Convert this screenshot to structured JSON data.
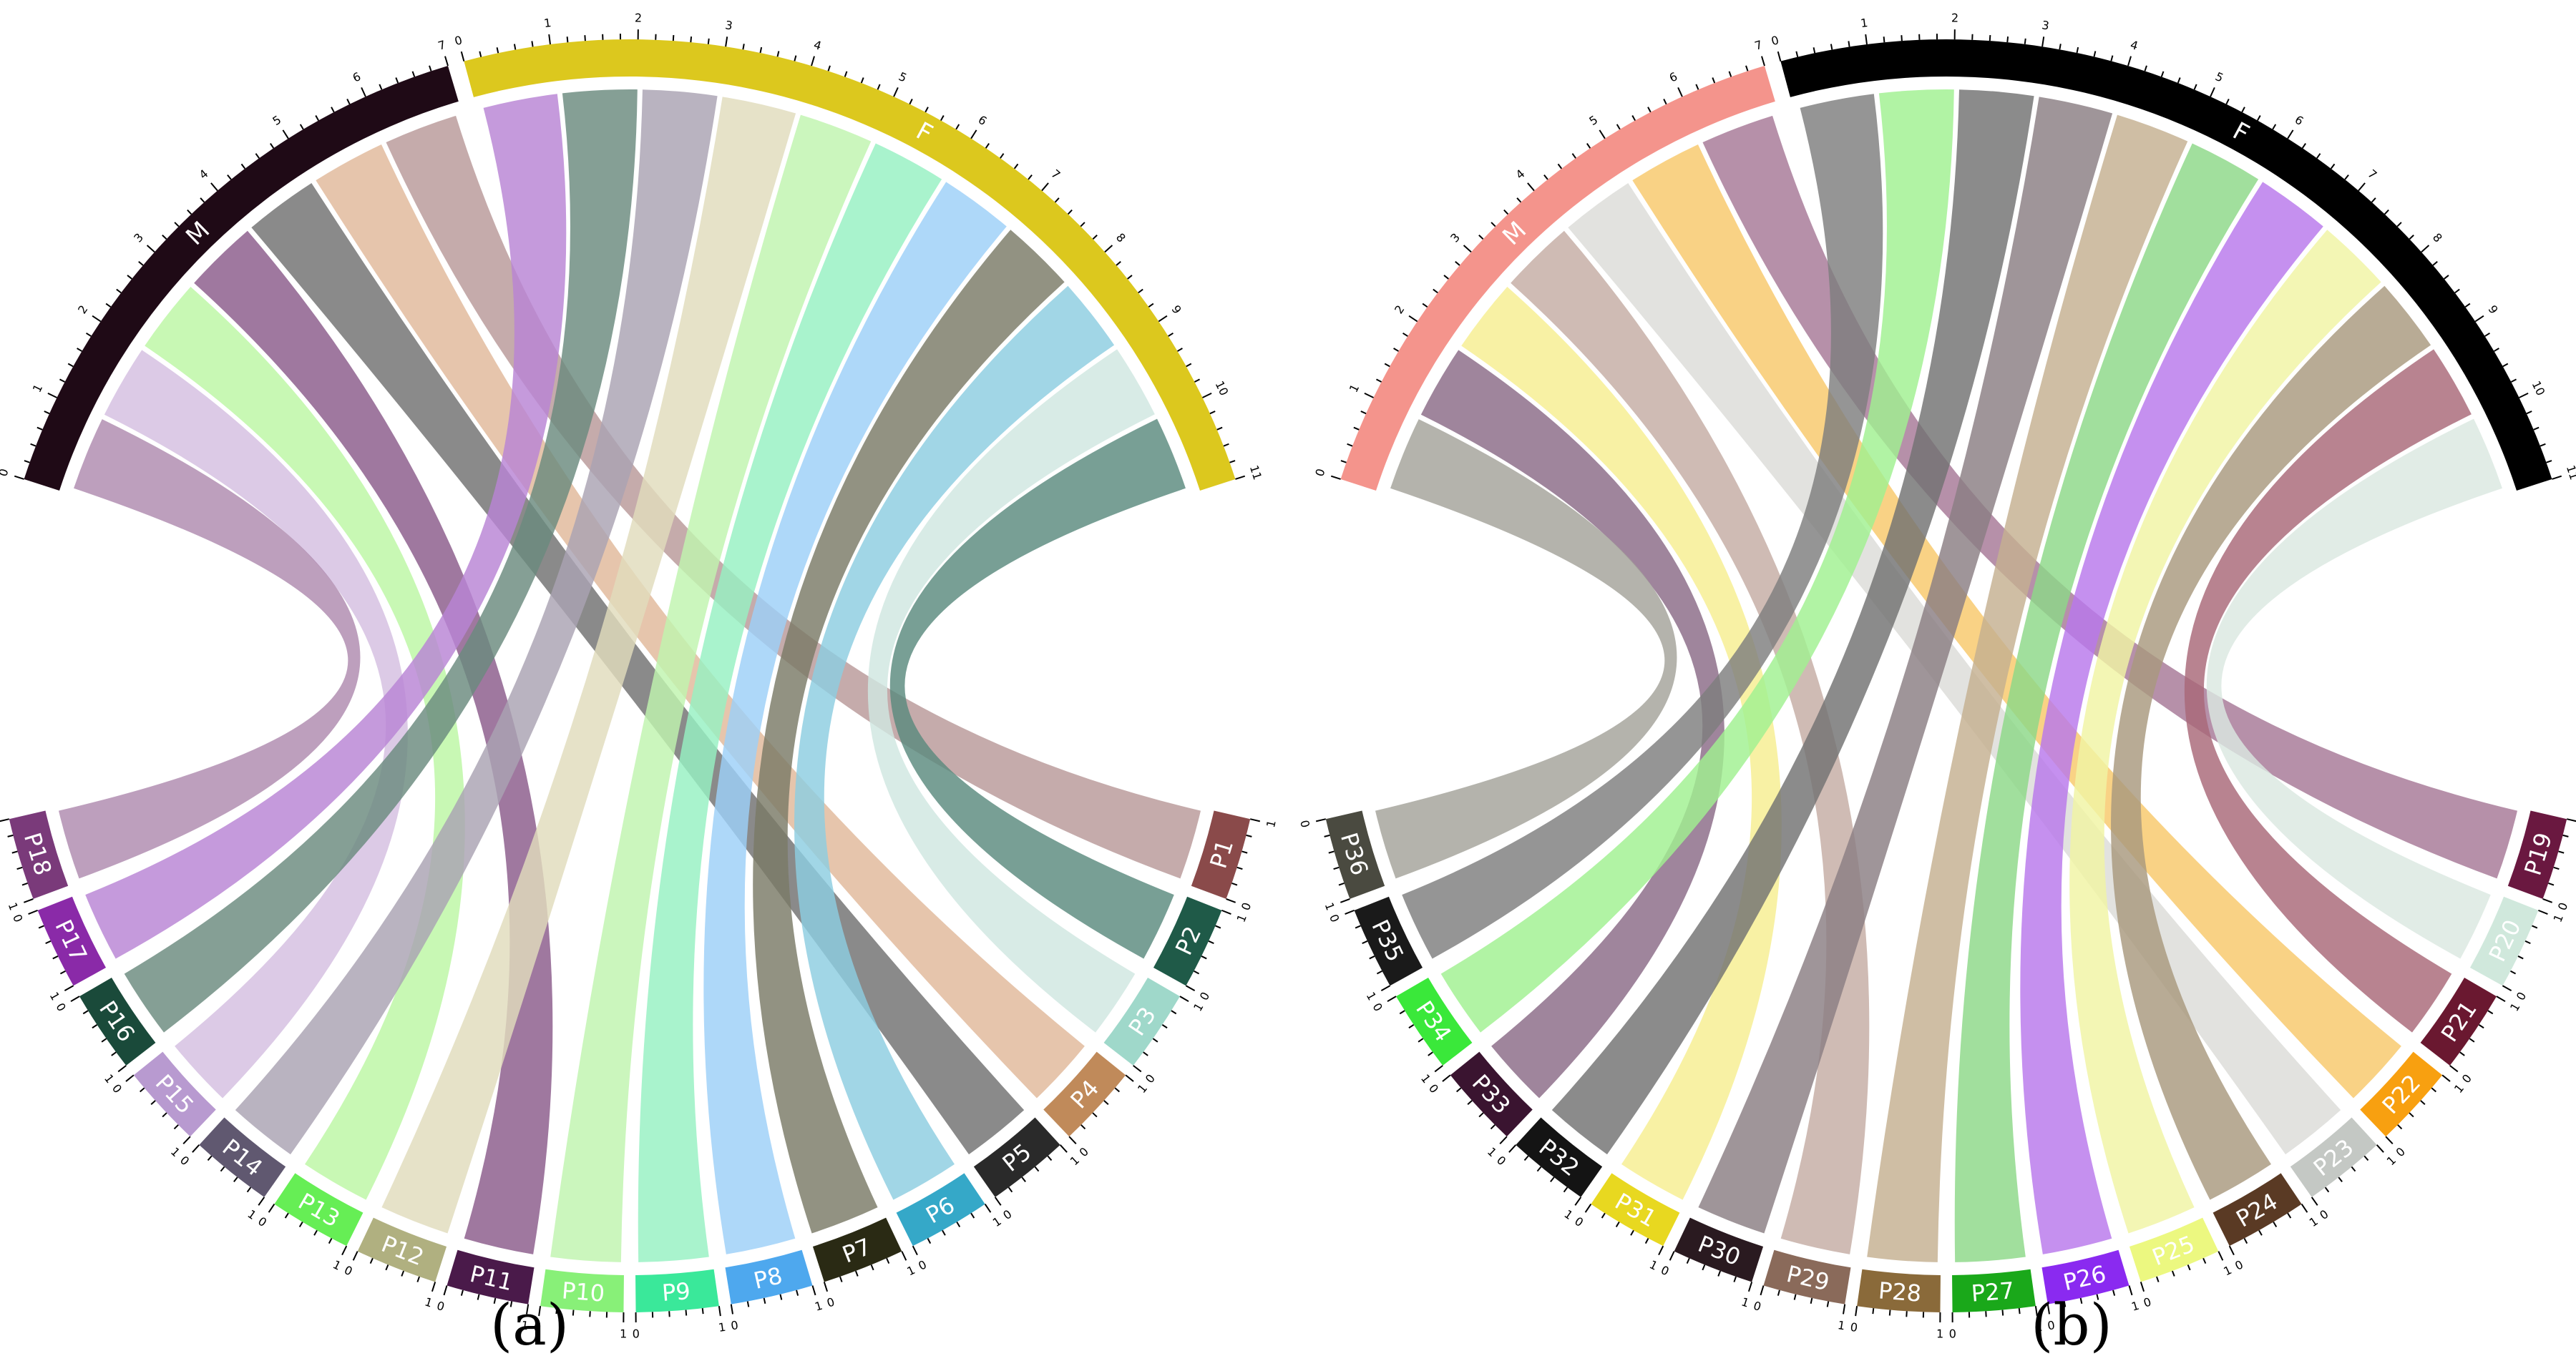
{
  "panels": [
    {
      "caption": "(a)",
      "top_sectors": [
        {
          "label": "M",
          "color": "#1f0a16",
          "ticks": [
            "0",
            "1",
            "2",
            "3",
            "4",
            "5",
            "6",
            "7"
          ]
        },
        {
          "label": "F",
          "color": "#dcc81e",
          "ticks": [
            "0",
            "1",
            "2",
            "3",
            "4",
            "5",
            "6",
            "7",
            "8",
            "9",
            "10",
            "11"
          ]
        }
      ],
      "bottom_sectors": [
        {
          "label": "P1",
          "color": "#8a4a4a"
        },
        {
          "label": "P2",
          "color": "#1f5a48"
        },
        {
          "label": "P3",
          "color": "#9fd8ca"
        },
        {
          "label": "P4",
          "color": "#c08a5a"
        },
        {
          "label": "P5",
          "color": "#2a2a2a"
        },
        {
          "label": "P6",
          "color": "#35a8c8"
        },
        {
          "label": "P7",
          "color": "#2a2a14"
        },
        {
          "label": "P8",
          "color": "#4ea8ee"
        },
        {
          "label": "P9",
          "color": "#3ae89a"
        },
        {
          "label": "P10",
          "color": "#88f078"
        },
        {
          "label": "P11",
          "color": "#4a1a4a"
        },
        {
          "label": "P12",
          "color": "#b0b080"
        },
        {
          "label": "P13",
          "color": "#66ee55"
        },
        {
          "label": "P14",
          "color": "#605870"
        },
        {
          "label": "P15",
          "color": "#b89ad0"
        },
        {
          "label": "P16",
          "color": "#1a4a3a"
        },
        {
          "label": "P17",
          "color": "#8a2aa8"
        },
        {
          "label": "P18",
          "color": "#7a3a7a"
        }
      ],
      "chords": [
        {
          "to": "M",
          "from": "P1",
          "color": "#b89898"
        },
        {
          "to": "F",
          "from": "P2",
          "color": "#5a8a7e"
        },
        {
          "to": "F",
          "from": "P3",
          "color": "#cfe6e0"
        },
        {
          "to": "M",
          "from": "P4",
          "color": "#e0b89a"
        },
        {
          "to": "M",
          "from": "P5",
          "color": "#707070"
        },
        {
          "to": "F",
          "from": "P6",
          "color": "#8ccde0"
        },
        {
          "to": "F",
          "from": "P7",
          "color": "#7a7a66"
        },
        {
          "to": "F",
          "from": "P8",
          "color": "#9cd0f8"
        },
        {
          "to": "F",
          "from": "P9",
          "color": "#96f0c2"
        },
        {
          "to": "F",
          "from": "P10",
          "color": "#c0f4ae"
        },
        {
          "to": "M",
          "from": "P11",
          "color": "#8a5a8a"
        },
        {
          "to": "F",
          "from": "P12",
          "color": "#e0dcbc"
        },
        {
          "to": "M",
          "from": "P13",
          "color": "#bcf6a4"
        },
        {
          "to": "F",
          "from": "P14",
          "color": "#aaa2b2"
        },
        {
          "to": "M",
          "from": "P15",
          "color": "#d4bee0"
        },
        {
          "to": "F",
          "from": "P16",
          "color": "#6a8a7e"
        },
        {
          "to": "F",
          "from": "P17",
          "color": "#b884d4"
        },
        {
          "to": "M",
          "from": "P18",
          "color": "#ae8aae"
        }
      ]
    },
    {
      "caption": "(b)",
      "top_sectors": [
        {
          "label": "M",
          "color": "#f4948c",
          "ticks": [
            "0",
            "1",
            "2",
            "3",
            "4",
            "5",
            "6",
            "7"
          ]
        },
        {
          "label": "F",
          "color": "#000000",
          "ticks": [
            "0",
            "1",
            "2",
            "3",
            "4",
            "5",
            "6",
            "7",
            "8",
            "9",
            "10",
            "11"
          ]
        }
      ],
      "bottom_sectors": [
        {
          "label": "P19",
          "color": "#6a1840"
        },
        {
          "label": "P20",
          "color": "#d0e8dc"
        },
        {
          "label": "P21",
          "color": "#6a1830"
        },
        {
          "label": "P22",
          "color": "#f8a010"
        },
        {
          "label": "P23",
          "color": "#c4c8c4"
        },
        {
          "label": "P24",
          "color": "#5a3a24"
        },
        {
          "label": "P25",
          "color": "#ecf880"
        },
        {
          "label": "P26",
          "color": "#8a2af0"
        },
        {
          "label": "P27",
          "color": "#1aa81a"
        },
        {
          "label": "P28",
          "color": "#8a6a3a"
        },
        {
          "label": "P29",
          "color": "#8a6a5a"
        },
        {
          "label": "P30",
          "color": "#2a1a20"
        },
        {
          "label": "P31",
          "color": "#e8d820"
        },
        {
          "label": "P32",
          "color": "#141414"
        },
        {
          "label": "P33",
          "color": "#3a1430"
        },
        {
          "label": "P34",
          "color": "#3ae83a"
        },
        {
          "label": "P35",
          "color": "#1a1a1a"
        },
        {
          "label": "P36",
          "color": "#4a4a40"
        }
      ],
      "chords": [
        {
          "to": "M",
          "from": "P19",
          "color": "#a67896"
        },
        {
          "to": "F",
          "from": "P20",
          "color": "#dae8e0"
        },
        {
          "to": "F",
          "from": "P21",
          "color": "#a86878"
        },
        {
          "to": "M",
          "from": "P22",
          "color": "#f8c86a"
        },
        {
          "to": "M",
          "from": "P23",
          "color": "#dcdcd8"
        },
        {
          "to": "F",
          "from": "P24",
          "color": "#a8987e"
        },
        {
          "to": "F",
          "from": "P25",
          "color": "#f0f4a4"
        },
        {
          "to": "F",
          "from": "P26",
          "color": "#b878ec"
        },
        {
          "to": "F",
          "from": "P27",
          "color": "#8cd888"
        },
        {
          "to": "F",
          "from": "P28",
          "color": "#c4b090"
        },
        {
          "to": "M",
          "from": "P29",
          "color": "#c4aca4"
        },
        {
          "to": "F",
          "from": "P30",
          "color": "#8a7e82"
        },
        {
          "to": "M",
          "from": "P31",
          "color": "#f6ee90"
        },
        {
          "to": "F",
          "from": "P32",
          "color": "#727272"
        },
        {
          "to": "M",
          "from": "P33",
          "color": "#8a6a86"
        },
        {
          "to": "F",
          "from": "P34",
          "color": "#a0f090"
        },
        {
          "to": "F",
          "from": "P35",
          "color": "#7e7e7e"
        },
        {
          "to": "M",
          "from": "P36",
          "color": "#a4a29a"
        }
      ]
    }
  ],
  "bottom_tick_labels": [
    "0",
    "1"
  ]
}
